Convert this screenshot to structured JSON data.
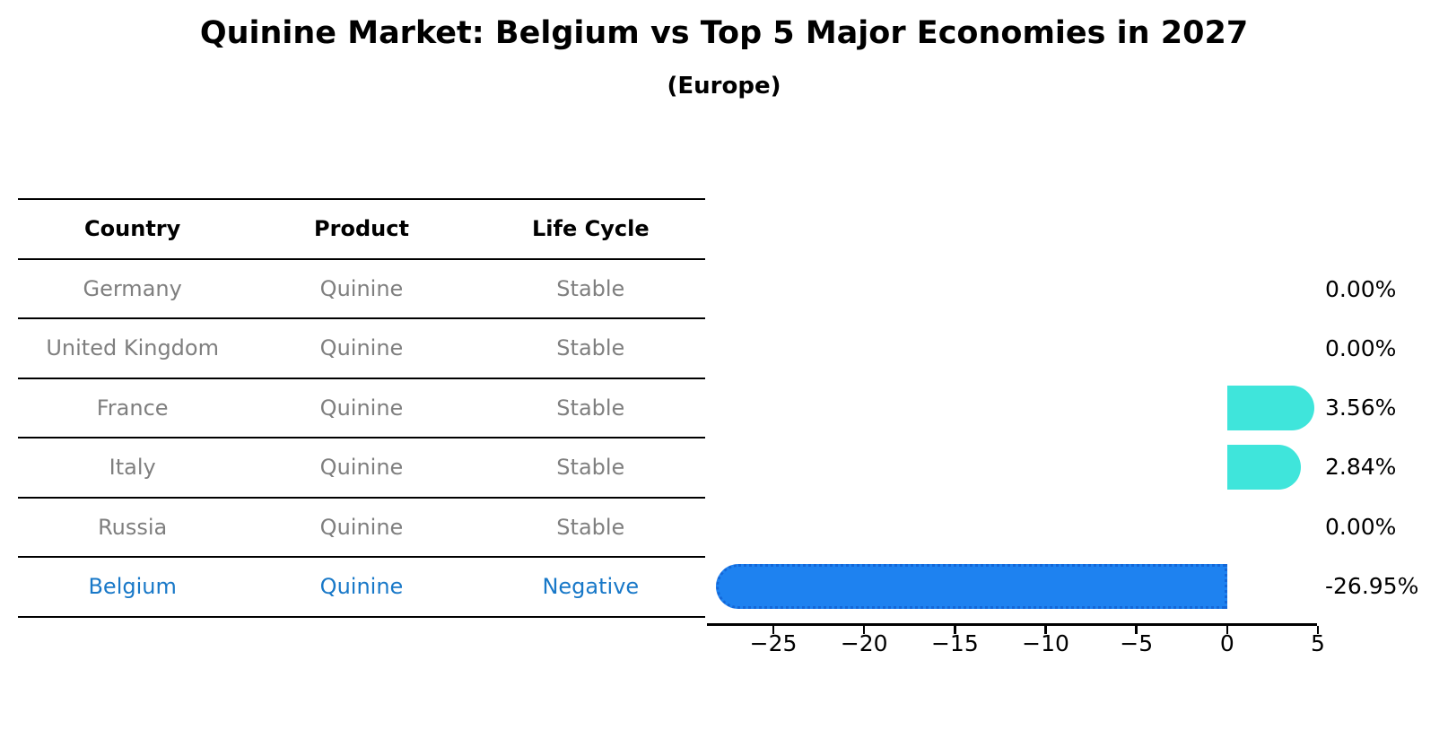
{
  "header": {
    "title": "Quinine Market: Belgium vs Top 5 Major Economies in 2027",
    "subtitle": "(Europe)"
  },
  "table": {
    "columns": [
      "Country",
      "Product",
      "Life Cycle"
    ],
    "rows": [
      {
        "cells": [
          "Germany",
          "Quinine",
          "Stable"
        ],
        "highlight": false
      },
      {
        "cells": [
          "United Kingdom",
          "Quinine",
          "Stable"
        ],
        "highlight": false
      },
      {
        "cells": [
          "France",
          "Quinine",
          "Stable"
        ],
        "highlight": false
      },
      {
        "cells": [
          "Italy",
          "Quinine",
          "Stable"
        ],
        "highlight": false
      },
      {
        "cells": [
          "Russia",
          "Quinine",
          "Stable"
        ],
        "highlight": false
      },
      {
        "cells": [
          "Belgium",
          "Quinine",
          "Negative"
        ],
        "highlight": true
      }
    ]
  },
  "chart_data": {
    "type": "bar",
    "orientation": "horizontal",
    "title": "Quinine Market: Belgium vs Top 5 Major Economies in 2027",
    "subtitle": "(Europe)",
    "categories": [
      "Germany",
      "United Kingdom",
      "France",
      "Italy",
      "Russia",
      "Belgium"
    ],
    "values": [
      0.0,
      0.0,
      3.56,
      2.84,
      0.0,
      -26.95
    ],
    "value_labels": [
      "0.00%",
      "0.00%",
      "3.56%",
      "2.84%",
      "0.00%",
      "-26.95%"
    ],
    "x_ticks": [
      -25,
      -20,
      -15,
      -10,
      -5,
      0,
      5
    ],
    "x_tick_labels": [
      "−25",
      "−20",
      "−15",
      "−10",
      "−5",
      "0",
      "5"
    ],
    "xlim": [
      -28.66,
      4.95
    ],
    "grid": false,
    "legend": "none",
    "colors": {
      "positive_bar": "#3fe5db",
      "negative_bar": "#1e82f0",
      "negative_bar_border": "#1467d8",
      "highlight_text": "#1878c8",
      "table_text": "#7f7f7f",
      "text": "#000000"
    }
  }
}
